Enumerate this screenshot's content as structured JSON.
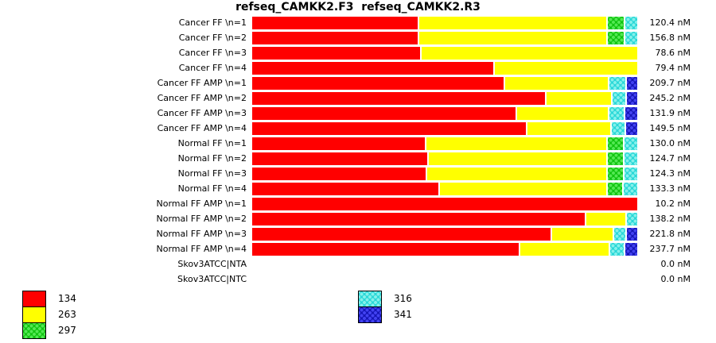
{
  "title": "refseq_CAMKK2.F3  refseq_CAMKK2.R3",
  "unit": "nM",
  "colors": {
    "background": "#FFFFFF",
    "text": "#000000",
    "series": {
      "134": "#FF0000",
      "263": "#FFFF00",
      "297": "#12C412",
      "316": "#2BD8D8",
      "341": "#1717B8"
    }
  },
  "chart_data": {
    "type": "bar",
    "orientation": "horizontal",
    "stacked": true,
    "percent_scale": true,
    "grid": false,
    "title": "refseq_CAMKK2.F3  refseq_CAMKK2.R3",
    "legend_position": "bottom-left",
    "series_keys": [
      "134",
      "263",
      "297",
      "316",
      "341"
    ],
    "rows": [
      {
        "label": "Cancer FF \\n=1",
        "value_label": "120.4 nM",
        "value_nM": 120.4,
        "segments": [
          {
            "key": "134",
            "pct": 43.6
          },
          {
            "key": "263",
            "pct": 49.0
          },
          {
            "key": "297",
            "pct": 4.3
          },
          {
            "key": "316",
            "pct": 3.1
          }
        ]
      },
      {
        "label": "Cancer FF \\n=2",
        "value_label": "156.8 nM",
        "value_nM": 156.8,
        "segments": [
          {
            "key": "134",
            "pct": 43.6
          },
          {
            "key": "263",
            "pct": 49.0
          },
          {
            "key": "297",
            "pct": 4.3
          },
          {
            "key": "316",
            "pct": 3.1
          }
        ]
      },
      {
        "label": "Cancer FF \\n=3",
        "value_label": "78.6 nM",
        "value_nM": 78.6,
        "segments": [
          {
            "key": "134",
            "pct": 43.8
          },
          {
            "key": "263",
            "pct": 56.2
          }
        ]
      },
      {
        "label": "Cancer FF \\n=4",
        "value_label": "79.4 nM",
        "value_nM": 79.4,
        "segments": [
          {
            "key": "134",
            "pct": 62.8
          },
          {
            "key": "263",
            "pct": 37.2
          }
        ]
      },
      {
        "label": "Cancer FF AMP \\n=1",
        "value_label": "209.7 nM",
        "value_nM": 209.7,
        "segments": [
          {
            "key": "134",
            "pct": 66.1
          },
          {
            "key": "263",
            "pct": 26.9
          },
          {
            "key": "316",
            "pct": 4.2
          },
          {
            "key": "341",
            "pct": 2.8
          }
        ]
      },
      {
        "label": "Cancer FF AMP \\n=2",
        "value_label": "245.2 nM",
        "value_nM": 245.2,
        "segments": [
          {
            "key": "134",
            "pct": 76.9
          },
          {
            "key": "263",
            "pct": 17.1
          },
          {
            "key": "316",
            "pct": 3.3
          },
          {
            "key": "341",
            "pct": 2.7
          }
        ]
      },
      {
        "label": "Cancer FF AMP \\n=3",
        "value_label": "131.9 nM",
        "value_nM": 131.9,
        "segments": [
          {
            "key": "134",
            "pct": 69.2
          },
          {
            "key": "263",
            "pct": 23.8
          },
          {
            "key": "316",
            "pct": 3.9
          },
          {
            "key": "341",
            "pct": 3.1
          }
        ]
      },
      {
        "label": "Cancer FF AMP \\n=4",
        "value_label": "149.5 nM",
        "value_nM": 149.5,
        "segments": [
          {
            "key": "134",
            "pct": 71.9
          },
          {
            "key": "263",
            "pct": 21.9
          },
          {
            "key": "316",
            "pct": 3.3
          },
          {
            "key": "341",
            "pct": 2.9
          }
        ]
      },
      {
        "label": "Normal FF \\n=1",
        "value_label": "130.0 nM",
        "value_nM": 130.0,
        "segments": [
          {
            "key": "134",
            "pct": 45.5
          },
          {
            "key": "263",
            "pct": 47.1
          },
          {
            "key": "297",
            "pct": 4.1
          },
          {
            "key": "316",
            "pct": 3.3
          }
        ]
      },
      {
        "label": "Normal FF \\n=2",
        "value_label": "124.7 nM",
        "value_nM": 124.7,
        "segments": [
          {
            "key": "134",
            "pct": 46.1
          },
          {
            "key": "263",
            "pct": 46.5
          },
          {
            "key": "297",
            "pct": 4.1
          },
          {
            "key": "316",
            "pct": 3.3
          }
        ]
      },
      {
        "label": "Normal FF \\n=3",
        "value_label": "124.3 nM",
        "value_nM": 124.3,
        "segments": [
          {
            "key": "134",
            "pct": 45.7
          },
          {
            "key": "263",
            "pct": 46.9
          },
          {
            "key": "297",
            "pct": 4.1
          },
          {
            "key": "316",
            "pct": 3.3
          }
        ]
      },
      {
        "label": "Normal FF \\n=4",
        "value_label": "133.3 nM",
        "value_nM": 133.3,
        "segments": [
          {
            "key": "134",
            "pct": 49.0
          },
          {
            "key": "263",
            "pct": 43.6
          },
          {
            "key": "297",
            "pct": 3.9
          },
          {
            "key": "316",
            "pct": 3.5
          }
        ]
      },
      {
        "label": "Normal FF AMP \\n=1",
        "value_label": "10.2 nM",
        "value_nM": 10.2,
        "segments": [
          {
            "key": "134",
            "pct": 100.0
          }
        ]
      },
      {
        "label": "Normal FF AMP \\n=2",
        "value_label": "138.2 nM",
        "value_nM": 138.2,
        "segments": [
          {
            "key": "134",
            "pct": 87.0
          },
          {
            "key": "263",
            "pct": 10.3
          },
          {
            "key": "316",
            "pct": 2.7
          }
        ]
      },
      {
        "label": "Normal FF AMP \\n=3",
        "value_label": "221.8 nM",
        "value_nM": 221.8,
        "segments": [
          {
            "key": "134",
            "pct": 78.5
          },
          {
            "key": "263",
            "pct": 15.9
          },
          {
            "key": "316",
            "pct": 2.9
          },
          {
            "key": "341",
            "pct": 2.7
          }
        ]
      },
      {
        "label": "Normal FF AMP \\n=4",
        "value_label": "237.7 nM",
        "value_nM": 237.7,
        "segments": [
          {
            "key": "134",
            "pct": 70.0
          },
          {
            "key": "263",
            "pct": 23.3
          },
          {
            "key": "316",
            "pct": 3.5
          },
          {
            "key": "341",
            "pct": 3.2
          }
        ]
      },
      {
        "label": "Skov3ATCC|NTA",
        "value_label": "0.0 nM",
        "value_nM": 0.0,
        "segments": []
      },
      {
        "label": "Skov3ATCC|NTC",
        "value_label": "0.0 nM",
        "value_nM": 0.0,
        "segments": []
      }
    ]
  },
  "legend": {
    "columns": [
      {
        "items": [
          {
            "key": "134",
            "color_name": "red"
          },
          {
            "key": "263",
            "color_name": "yellow"
          },
          {
            "key": "297",
            "color_name": "green-pattern"
          }
        ]
      },
      {
        "items": [
          {
            "key": "316",
            "color_name": "cyan-pattern"
          },
          {
            "key": "341",
            "color_name": "blue-pattern"
          }
        ]
      }
    ]
  }
}
